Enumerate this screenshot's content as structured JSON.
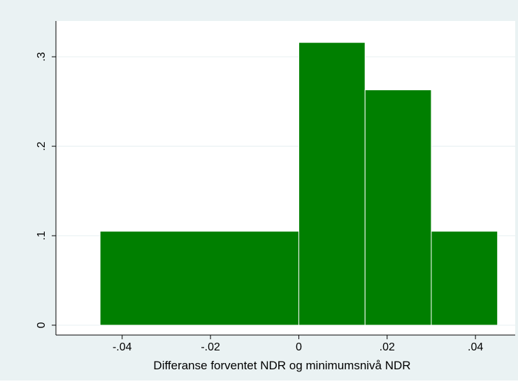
{
  "chart_data": {
    "type": "bar",
    "title": "",
    "xlabel": "Differanse forventet NDR og minimumsnivå NDR",
    "ylabel": "",
    "bins": [
      {
        "x0": -0.045,
        "x1": 0.0,
        "density": 0.105
      },
      {
        "x0": 0.0,
        "x1": 0.015,
        "density": 0.316
      },
      {
        "x0": 0.015,
        "x1": 0.03,
        "density": 0.263
      },
      {
        "x0": 0.03,
        "x1": 0.045,
        "density": 0.105
      }
    ],
    "xlim": [
      -0.055,
      0.049
    ],
    "ylim": [
      -0.011,
      0.34
    ],
    "xticks": [
      {
        "value": -0.04,
        "label": "-.04"
      },
      {
        "value": -0.02,
        "label": "-.02"
      },
      {
        "value": 0.0,
        "label": "0"
      },
      {
        "value": 0.02,
        "label": ".02"
      },
      {
        "value": 0.04,
        "label": ".04"
      }
    ],
    "yticks": [
      {
        "value": 0.0,
        "label": "0"
      },
      {
        "value": 0.1,
        "label": ".1"
      },
      {
        "value": 0.2,
        "label": ".2"
      },
      {
        "value": 0.3,
        "label": ".3"
      }
    ],
    "grid": true,
    "colors": {
      "bar": "#007F00",
      "outer_background": "#EAF2F3",
      "plot_background": "#FFFFFF",
      "grid": "#EAF2F3",
      "axis": "#000000"
    }
  }
}
